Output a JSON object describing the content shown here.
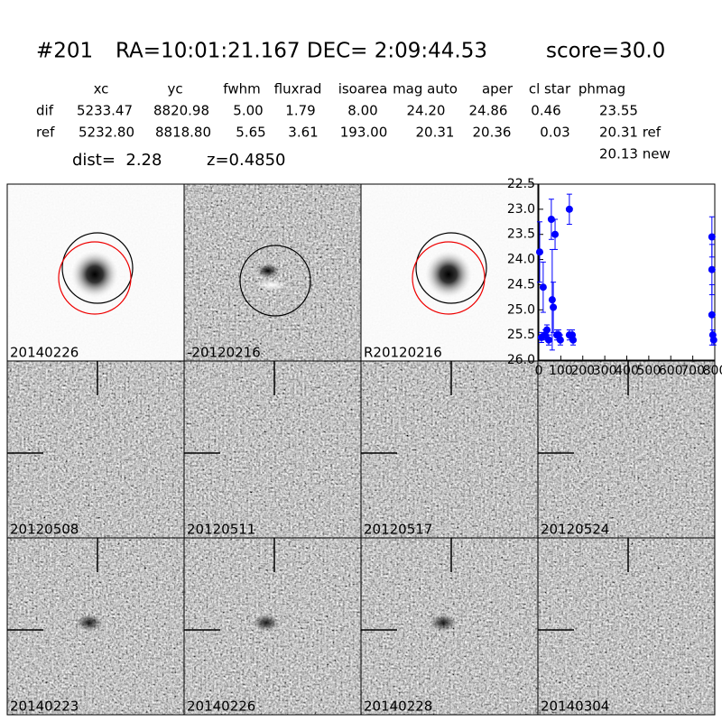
{
  "header": {
    "id": "#201",
    "coords": "RA=10:01:21.167 DEC= 2:09:44.53",
    "score": "score=30.0"
  },
  "table": {
    "columns": [
      "xc",
      "yc",
      "fwhm",
      "fluxrad",
      "isoarea",
      "mag auto",
      "aper",
      "cl star",
      "phmag"
    ],
    "rows": [
      [
        "dif",
        "5233.47",
        "8820.98",
        "5.00",
        "1.79",
        "8.00",
        "24.20",
        "24.86",
        "0.46",
        "23.55"
      ],
      [
        "ref",
        "5232.80",
        "8818.80",
        "5.65",
        "3.61",
        "193.00",
        "20.31",
        "20.36",
        "0.03",
        "20.31 ref"
      ]
    ],
    "extra": "20.13 new"
  },
  "info": {
    "dist": "dist=  2.28",
    "z": "z=0.4850"
  },
  "panels": [
    {
      "label": "20140226",
      "color": "#000000"
    },
    {
      "label": "-20120216",
      "color": "#000000"
    },
    {
      "label": "R20120216",
      "color": "#000000"
    },
    {
      "label": "20120508",
      "color": "#000000"
    },
    {
      "label": "20120511",
      "color": "#000000"
    },
    {
      "label": "20120517",
      "color": "#000000"
    },
    {
      "label": "20120524",
      "color": "#000000"
    },
    {
      "label": "20140223",
      "color": "#000000"
    },
    {
      "label": "20140226",
      "color": "#ff0000"
    },
    {
      "label": "20140228",
      "color": "#000000"
    },
    {
      "label": "20140304",
      "color": "#000000"
    }
  ],
  "chart_data": {
    "type": "scatter",
    "color": "#0000ff",
    "x": [
      4,
      12,
      20,
      29,
      37,
      45,
      57,
      61,
      66,
      74,
      82,
      90,
      98,
      139,
      139,
      152,
      156,
      787,
      787,
      787,
      791,
      795
    ],
    "y": [
      23.85,
      25.55,
      24.55,
      25.5,
      25.4,
      25.6,
      23.2,
      24.8,
      24.95,
      23.5,
      25.5,
      25.5,
      25.6,
      23.0,
      25.5,
      25.5,
      25.6,
      23.55,
      24.2,
      25.1,
      25.5,
      25.6
    ],
    "errors": [
      0.6,
      0.1,
      0.5,
      0.1,
      0.1,
      0.1,
      0.4,
      1.0,
      0.5,
      0.3,
      0.1,
      0.1,
      0.1,
      0.3,
      0.1,
      0.1,
      0.1,
      0.4,
      0.5,
      0.6,
      0.1,
      0.1
    ],
    "xlim": [
      0,
      800
    ],
    "xticks": [
      0,
      100,
      200,
      300,
      400,
      500,
      600,
      700,
      800
    ],
    "ylim": [
      26.0,
      22.5
    ],
    "yticks": [
      22.5,
      {
        "value": 23,
        "label": "23.0"
      },
      23.5,
      {
        "value": 24,
        "label": "24.0"
      },
      24.5,
      {
        "value": 25,
        "label": "25.0"
      },
      25.5,
      {
        "value": 26,
        "label": "26.0"
      }
    ]
  }
}
